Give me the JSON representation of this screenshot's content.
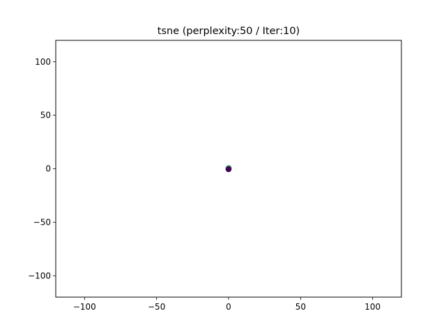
{
  "chart_data": {
    "type": "scatter",
    "title": "tsne (perplexity:50 / Iter:10)",
    "xlabel": "",
    "ylabel": "",
    "xlim": [
      -120,
      120
    ],
    "ylim": [
      -120,
      120
    ],
    "xticks": [
      -100,
      -50,
      0,
      50,
      100
    ],
    "xtick_labels": [
      "−100",
      "−50",
      "0",
      "50",
      "100"
    ],
    "yticks": [
      -100,
      -50,
      0,
      50,
      100
    ],
    "ytick_labels": [
      "−100",
      "−50",
      "0",
      "50",
      "100"
    ],
    "grid": false,
    "legend": "none",
    "series": [
      {
        "color": "#5ec962",
        "x": [
          0.0,
          0.2,
          -0.2
        ],
        "y": [
          0.6,
          0.9,
          0.4
        ]
      },
      {
        "color": "#21918c",
        "x": [
          0.1,
          -0.1,
          0.0
        ],
        "y": [
          0.2,
          0.0,
          -0.2
        ]
      },
      {
        "color": "#3b528b",
        "x": [
          0.0,
          -0.2,
          0.2,
          0.1
        ],
        "y": [
          -0.3,
          -0.1,
          0.0,
          -0.5
        ]
      },
      {
        "color": "#440154",
        "x": [
          0.0,
          -0.1
        ],
        "y": [
          -0.4,
          -0.6
        ]
      }
    ]
  }
}
